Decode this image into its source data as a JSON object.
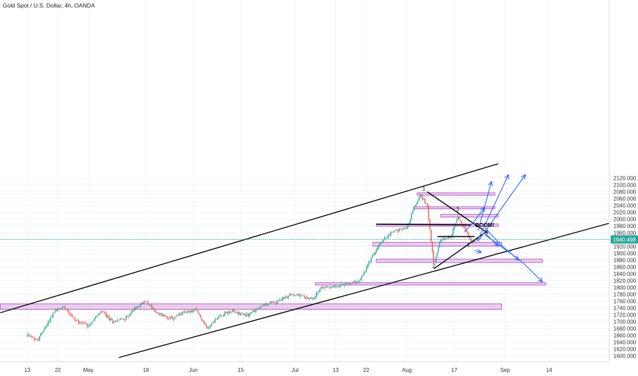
{
  "header": {
    "title": "Gold Spot / U.S. Dollar, 4h, OANDA"
  },
  "colors": {
    "up": "#26a69a",
    "down": "#ef5350",
    "zone_fill": "#e1bee7",
    "zone_stroke": "#ab47bc",
    "arrow": "#2962ff",
    "trend": "#000000",
    "price_line": "#26a69a",
    "price_tag": "#26a69a"
  },
  "chart_data": {
    "type": "candlestick",
    "title": "Gold Spot / U.S. Dollar, 4h, OANDA",
    "y_axis": {
      "position": "right",
      "ticks": [
        1600,
        1620,
        1640,
        1660,
        1680,
        1700,
        1720,
        1740,
        1760,
        1780,
        1800,
        1820,
        1840,
        1860,
        1880,
        1900,
        1920,
        1940,
        1960,
        1980,
        2000,
        2020,
        2040,
        2060,
        2080,
        2100,
        2120
      ],
      "tick_labels": [
        "1600.000",
        "1620.000",
        "1640.000",
        "1660.000",
        "1680.000",
        "1700.000",
        "1720.000",
        "1740.000",
        "1760.000",
        "1780.000",
        "1800.000",
        "1820.000",
        "1840.000",
        "1860.000",
        "1880.000",
        "1900.000",
        "1920.000",
        "1940.000",
        "1960.000",
        "1980.000",
        "2000.000",
        "2020.000",
        "2040.000",
        "2060.000",
        "2080.000",
        "2100.000",
        "2120.000"
      ],
      "range": [
        1594,
        2130
      ]
    },
    "x_axis": {
      "ticks": [
        "13",
        "22",
        "May",
        "18",
        "Jun",
        "15",
        "Jul",
        "13",
        "22",
        "Aug",
        "17",
        "Sep",
        "14"
      ]
    },
    "current_price": {
      "value": 1940.498,
      "label": "1940.498"
    },
    "path": [
      {
        "d": "2020-04-13",
        "v": 1660
      },
      {
        "d": "2020-04-16",
        "v": 1645
      },
      {
        "d": "2020-04-21",
        "v": 1730
      },
      {
        "d": "2020-04-24",
        "v": 1745
      },
      {
        "d": "2020-04-27",
        "v": 1705
      },
      {
        "d": "2020-05-01",
        "v": 1690
      },
      {
        "d": "2020-05-05",
        "v": 1730
      },
      {
        "d": "2020-05-08",
        "v": 1700
      },
      {
        "d": "2020-05-12",
        "v": 1710
      },
      {
        "d": "2020-05-15",
        "v": 1740
      },
      {
        "d": "2020-05-18",
        "v": 1762
      },
      {
        "d": "2020-05-21",
        "v": 1725
      },
      {
        "d": "2020-05-26",
        "v": 1708
      },
      {
        "d": "2020-05-29",
        "v": 1728
      },
      {
        "d": "2020-06-02",
        "v": 1732
      },
      {
        "d": "2020-06-05",
        "v": 1680
      },
      {
        "d": "2020-06-09",
        "v": 1720
      },
      {
        "d": "2020-06-12",
        "v": 1730
      },
      {
        "d": "2020-06-17",
        "v": 1720
      },
      {
        "d": "2020-06-22",
        "v": 1750
      },
      {
        "d": "2020-06-26",
        "v": 1760
      },
      {
        "d": "2020-06-30",
        "v": 1780
      },
      {
        "d": "2020-07-03",
        "v": 1775
      },
      {
        "d": "2020-07-06",
        "v": 1765
      },
      {
        "d": "2020-07-09",
        "v": 1800
      },
      {
        "d": "2020-07-13",
        "v": 1802
      },
      {
        "d": "2020-07-16",
        "v": 1808
      },
      {
        "d": "2020-07-20",
        "v": 1818
      },
      {
        "d": "2020-07-22",
        "v": 1855
      },
      {
        "d": "2020-07-24",
        "v": 1895
      },
      {
        "d": "2020-07-27",
        "v": 1940
      },
      {
        "d": "2020-07-30",
        "v": 1965
      },
      {
        "d": "2020-08-03",
        "v": 1975
      },
      {
        "d": "2020-08-05",
        "v": 2030
      },
      {
        "d": "2020-08-07",
        "v": 2070
      },
      {
        "d": "2020-08-09",
        "v": 2040
      },
      {
        "d": "2020-08-11",
        "v": 1870
      },
      {
        "d": "2020-08-13",
        "v": 1940
      },
      {
        "d": "2020-08-16",
        "v": 1945
      },
      {
        "d": "2020-08-18",
        "v": 2010
      },
      {
        "d": "2020-08-20",
        "v": 1970
      },
      {
        "d": "2020-08-22",
        "v": 1935
      },
      {
        "d": "2020-08-24",
        "v": 1940.5
      }
    ],
    "zones": [
      {
        "low": 1736,
        "high": 1752,
        "from": "2020-04-05",
        "to": "2020-08-31"
      },
      {
        "low": 1807,
        "high": 1814,
        "from": "2020-07-07",
        "to": "2020-09-13"
      },
      {
        "low": 1873,
        "high": 1883,
        "from": "2020-07-25",
        "to": "2020-09-12"
      },
      {
        "low": 1921,
        "high": 1932,
        "from": "2020-07-24",
        "to": "2020-08-31"
      },
      {
        "low": 1979,
        "high": 1986,
        "from": "2020-07-25",
        "to": "2020-08-30"
      },
      {
        "low": 2006,
        "high": 2014,
        "from": "2020-08-13",
        "to": "2020-08-30"
      },
      {
        "low": 2030,
        "high": 2036,
        "from": "2020-08-05",
        "to": "2020-08-29"
      },
      {
        "low": 2070,
        "high": 2077,
        "from": "2020-08-06",
        "to": "2020-08-29"
      }
    ],
    "trendlines": [
      {
        "x1": "2020-04-05",
        "y1": 1726,
        "x2": "2020-08-30",
        "y2": 2162
      },
      {
        "x1": "2020-05-10",
        "y1": 1595,
        "x2": "2020-10-04",
        "y2": 1994
      },
      {
        "x1": "2020-08-09",
        "y1": 2080,
        "x2": "2020-08-27",
        "y2": 1958
      },
      {
        "x1": "2020-08-11",
        "y1": 1855,
        "x2": "2020-08-27",
        "y2": 1967
      },
      {
        "x1": "2020-07-25",
        "y1": 1985,
        "x2": "2020-08-22",
        "y2": 1983
      },
      {
        "x1": "2020-08-12",
        "y1": 1949,
        "x2": "2020-08-23",
        "y2": 1949
      }
    ],
    "arrows": [
      {
        "points": [
          [
            "2020-08-20",
            "2020-08-23",
            "2020-08-26"
          ],
          [
            1962,
            1995,
            2035
          ]
        ]
      },
      {
        "points": [
          [
            "2020-08-24",
            "2020-08-28"
          ],
          [
            1966,
            2110
          ]
        ]
      },
      {
        "points": [
          [
            "2020-08-24",
            "2020-09-02"
          ],
          [
            1940,
            2130
          ]
        ]
      },
      {
        "points": [
          [
            "2020-08-24",
            "2020-09-07"
          ],
          [
            1935,
            2130
          ]
        ]
      },
      {
        "points": [
          [
            "2020-08-26",
            "2020-08-31",
            "2020-09-05"
          ],
          [
            1975,
            1923,
            1880
          ]
        ]
      },
      {
        "points": [
          [
            "2020-08-26",
            "2020-08-30"
          ],
          [
            1960,
            1921
          ]
        ]
      },
      {
        "points": [
          [
            "2020-08-26",
            "2020-09-06",
            "2020-09-12"
          ],
          [
            1955,
            1875,
            1816
          ]
        ]
      },
      {
        "points": [
          [
            "2020-08-23",
            "2020-08-25"
          ],
          [
            1908,
            1903
          ]
        ]
      }
    ],
    "annotations": [
      {
        "text": "1",
        "x": "2020-08-08",
        "y": 2083
      },
      {
        "text": "2",
        "x": "2020-08-11",
        "y": 1858
      },
      {
        "text": "3",
        "x": "2020-08-18",
        "y": 2023
      },
      {
        "text": "4",
        "x": "2020-08-21",
        "y": 1918
      },
      {
        "text": "BOOM!",
        "x": "2020-08-26",
        "y": 1977
      }
    ]
  }
}
